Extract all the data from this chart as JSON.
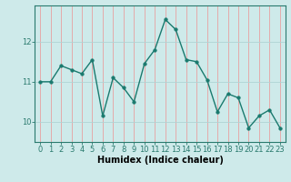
{
  "x": [
    0,
    1,
    2,
    3,
    4,
    5,
    6,
    7,
    8,
    9,
    10,
    11,
    12,
    13,
    14,
    15,
    16,
    17,
    18,
    19,
    20,
    21,
    22,
    23
  ],
  "y": [
    11.0,
    11.0,
    11.4,
    11.3,
    11.2,
    11.55,
    10.15,
    11.1,
    10.85,
    10.5,
    11.45,
    11.8,
    12.55,
    12.3,
    11.55,
    11.5,
    11.05,
    10.25,
    10.7,
    10.6,
    9.85,
    10.15,
    10.3,
    9.85
  ],
  "line_color": "#1a7a6e",
  "marker": "o",
  "marker_size": 2.5,
  "line_width": 1.0,
  "bg_color": "#ceeaea",
  "grid_color": "#afd4d4",
  "xlabel": "Humidex (Indice chaleur)",
  "xlabel_fontsize": 7,
  "yticks": [
    10,
    11,
    12
  ],
  "xticks": [
    0,
    1,
    2,
    3,
    4,
    5,
    6,
    7,
    8,
    9,
    10,
    11,
    12,
    13,
    14,
    15,
    16,
    17,
    18,
    19,
    20,
    21,
    22,
    23
  ],
  "ylim": [
    9.5,
    12.9
  ],
  "xlim": [
    -0.5,
    23.5
  ],
  "tick_fontsize": 6,
  "spine_color": "#2a7a6e",
  "tick_color": "#2a7a6e"
}
